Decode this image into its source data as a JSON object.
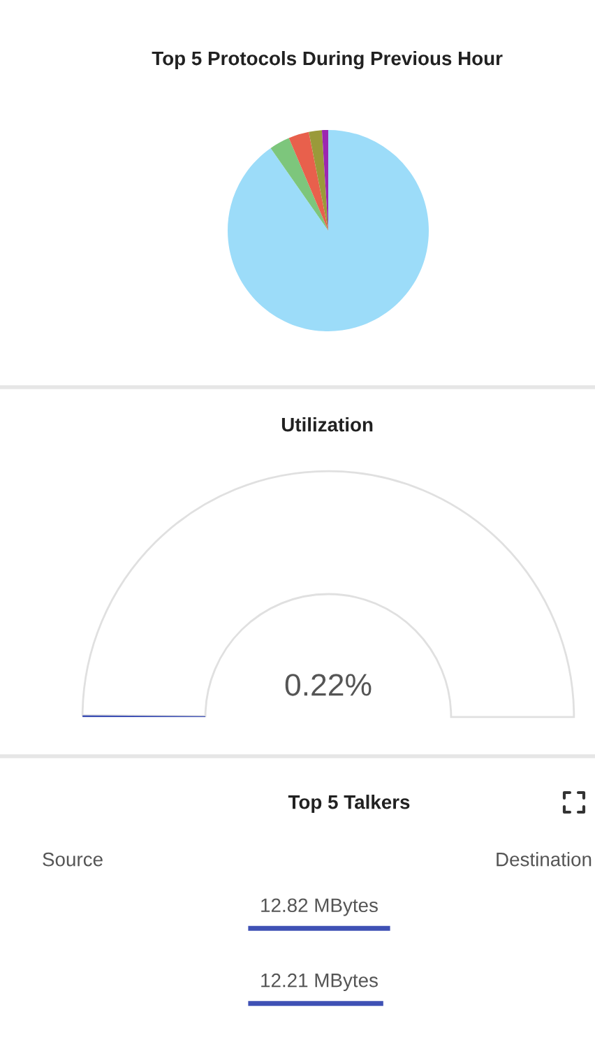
{
  "chart_data": [
    {
      "type": "pie",
      "title": "Top 5 Protocols During Previous Hour",
      "categories": [
        null,
        null,
        null,
        null,
        null
      ],
      "values": [
        90.3,
        3.3,
        3.3,
        2.1,
        1.0
      ],
      "colors": [
        "#9cdcf9",
        "#7dc67c",
        "#e8604c",
        "#9a9a3a",
        "#9c27b0"
      ]
    },
    {
      "type": "donut",
      "title": "Utilization",
      "categories": [
        null,
        null
      ],
      "values": [
        0.22,
        99.78
      ],
      "colors": [
        "#3f51b5",
        "#ffffff"
      ],
      "annotations": [
        "0.22%"
      ]
    },
    {
      "type": "bar",
      "orientation": "horizontal",
      "title": "Top 5 Talkers",
      "categories": [
        null,
        null
      ],
      "values": [
        12.82,
        12.21
      ],
      "color": "#3f51b5",
      "value_labels": [
        "12.82 MBytes",
        "12.21 MBytes"
      ],
      "annotations": [
        "Source",
        "Destination"
      ]
    }
  ]
}
